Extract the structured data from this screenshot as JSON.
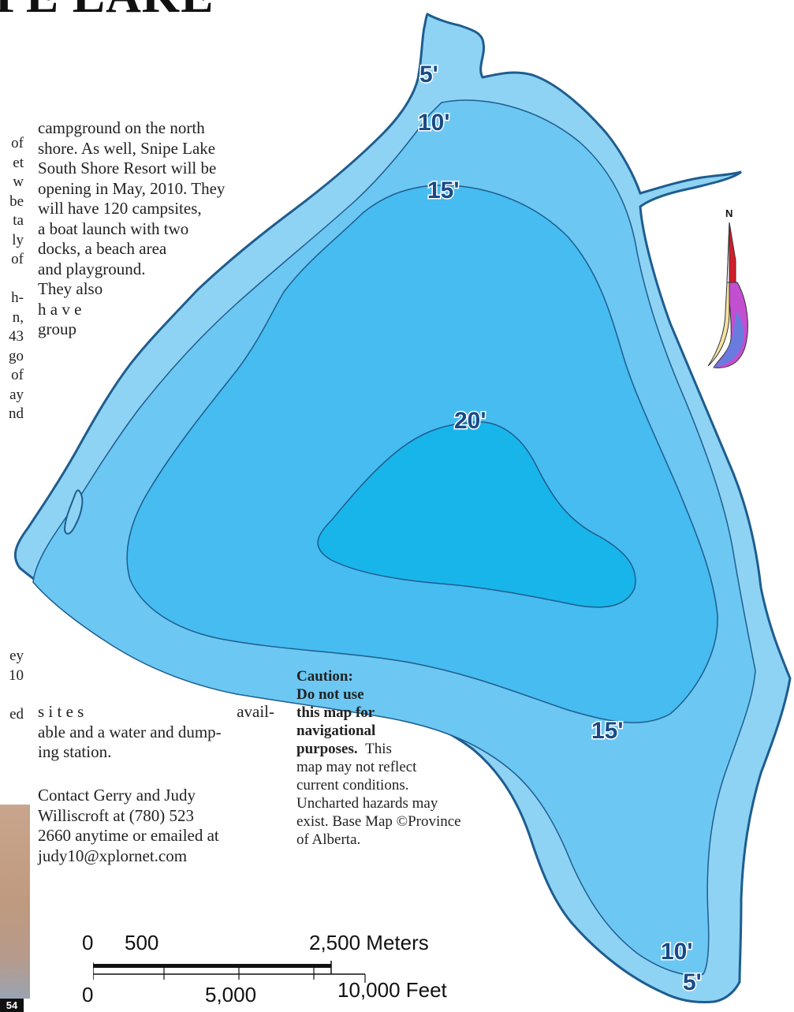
{
  "header": {
    "title": "PE LAKE"
  },
  "map": {
    "depth_labels": [
      "5'",
      "10'",
      "15'",
      "20'",
      "15'",
      "10'",
      "5'"
    ],
    "north_label": "N",
    "water_colors": [
      "#8fd3f4",
      "#6cc7f2",
      "#46bcf0",
      "#18b5ea"
    ],
    "shore_color": "#1e5d8f"
  },
  "left_column": {
    "lines": [
      "of",
      "et",
      "w",
      "be",
      "ta",
      "ly",
      "of",
      "",
      "h-",
      "n,",
      "43",
      "go",
      "of",
      "ay",
      "nd",
      "",
      "",
      "",
      "",
      "",
      "",
      "ey",
      "10",
      "",
      "ed"
    ]
  },
  "article": {
    "lines": [
      "campground on the north",
      "shore. As well, Snipe Lake",
      "South Shore Resort will be",
      "opening in May, 2010. They",
      "will have 120 campsites,",
      "a boat launch with two",
      "docks, a beach area",
      "and playground.",
      "They also",
      "h a v e",
      "group"
    ],
    "sites_word": "s i t e s",
    "avail_word": "avail-",
    "lines2": [
      "able and a water and dump-",
      "ing station."
    ],
    "contact_lines": [
      "Contact Gerry and Judy",
      "Williscroft at (780) 523",
      "2660 anytime or emailed at",
      "judy10@xplornet.com"
    ]
  },
  "caution": {
    "bold_lines": [
      "Caution:",
      "Do not use",
      "this map for",
      "navigational",
      "purposes."
    ],
    "after_bold": "This",
    "lines": [
      "map may not reflect",
      "current conditions.",
      "Uncharted hazards may",
      "exist. Base Map ©Province",
      "of Alberta."
    ]
  },
  "scale_bar": {
    "meters_labels": [
      "0",
      "500",
      "2,500 Meters"
    ],
    "feet_labels": [
      "0",
      "5,000",
      "10,000 Feet"
    ]
  },
  "page_number": "54"
}
